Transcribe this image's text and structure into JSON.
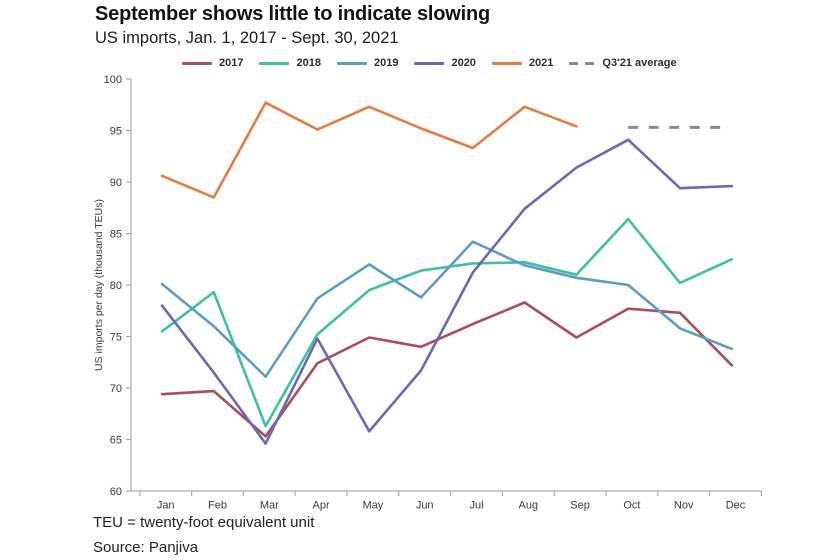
{
  "header": {
    "title": "September shows little to indicate slowing",
    "subtitle": "US imports, Jan. 1, 2017 - Sept. 30, 2021"
  },
  "legend": {
    "items": [
      {
        "label": "2017",
        "color": "#ab4d5d",
        "dashed": false
      },
      {
        "label": "2018",
        "color": "#3ec19f",
        "dashed": false
      },
      {
        "label": "2019",
        "color": "#5c9dc7",
        "dashed": false
      },
      {
        "label": "2020",
        "color": "#6b68b7",
        "dashed": false
      },
      {
        "label": "2021",
        "color": "#e77c42",
        "dashed": false
      },
      {
        "label": "Q3'21 average",
        "color": "#8a8a8a",
        "dashed": true
      }
    ]
  },
  "chart_data": {
    "type": "line",
    "title": "September shows little to indicate slowing",
    "subtitle": "US imports, Jan. 1, 2017 - Sept. 30, 2021",
    "xlabel": "",
    "ylabel": "US imports per day  (thousand TEUs)",
    "categories": [
      "Jan",
      "Feb",
      "Mar",
      "Apr",
      "May",
      "Jun",
      "Jul",
      "Aug",
      "Sep",
      "Oct",
      "Nov",
      "Dec"
    ],
    "ylim": [
      60,
      100
    ],
    "yticks": [
      60,
      65,
      70,
      75,
      80,
      85,
      90,
      95,
      100
    ],
    "grid": false,
    "legend_position": "top",
    "series": [
      {
        "name": "2017",
        "color": "#ab4d5d",
        "values": [
          69.4,
          69.7,
          65.3,
          72.4,
          74.9,
          74.0,
          76.2,
          78.3,
          74.9,
          77.7,
          77.3,
          72.2
        ]
      },
      {
        "name": "2018",
        "color": "#3ec19f",
        "values": [
          75.5,
          79.3,
          66.3,
          75.2,
          79.5,
          81.4,
          82.1,
          82.2,
          81.0,
          86.4,
          80.2,
          82.5
        ]
      },
      {
        "name": "2019",
        "color": "#5c9dc7",
        "values": [
          80.1,
          76.0,
          71.1,
          78.7,
          82.0,
          78.8,
          84.2,
          81.9,
          80.7,
          80.0,
          75.8,
          73.8
        ]
      },
      {
        "name": "2020",
        "color": "#6b68b7",
        "values": [
          78.0,
          71.5,
          64.6,
          74.8,
          65.8,
          71.7,
          81.2,
          87.4,
          91.4,
          94.1,
          89.4,
          89.6
        ]
      },
      {
        "name": "2021",
        "color": "#e77c42",
        "values": [
          90.6,
          88.5,
          97.7,
          95.1,
          97.3,
          95.2,
          93.3,
          97.3,
          95.4
        ]
      }
    ],
    "reference_line": {
      "name": "Q3'21 average",
      "value": 95.3,
      "color": "#8a8a8a",
      "style": "dashed",
      "span_categories": [
        "Oct",
        "Dec"
      ]
    }
  },
  "footer": {
    "note": "TEU = twenty-foot equivalent unit",
    "source": "Source: Panjiva"
  }
}
